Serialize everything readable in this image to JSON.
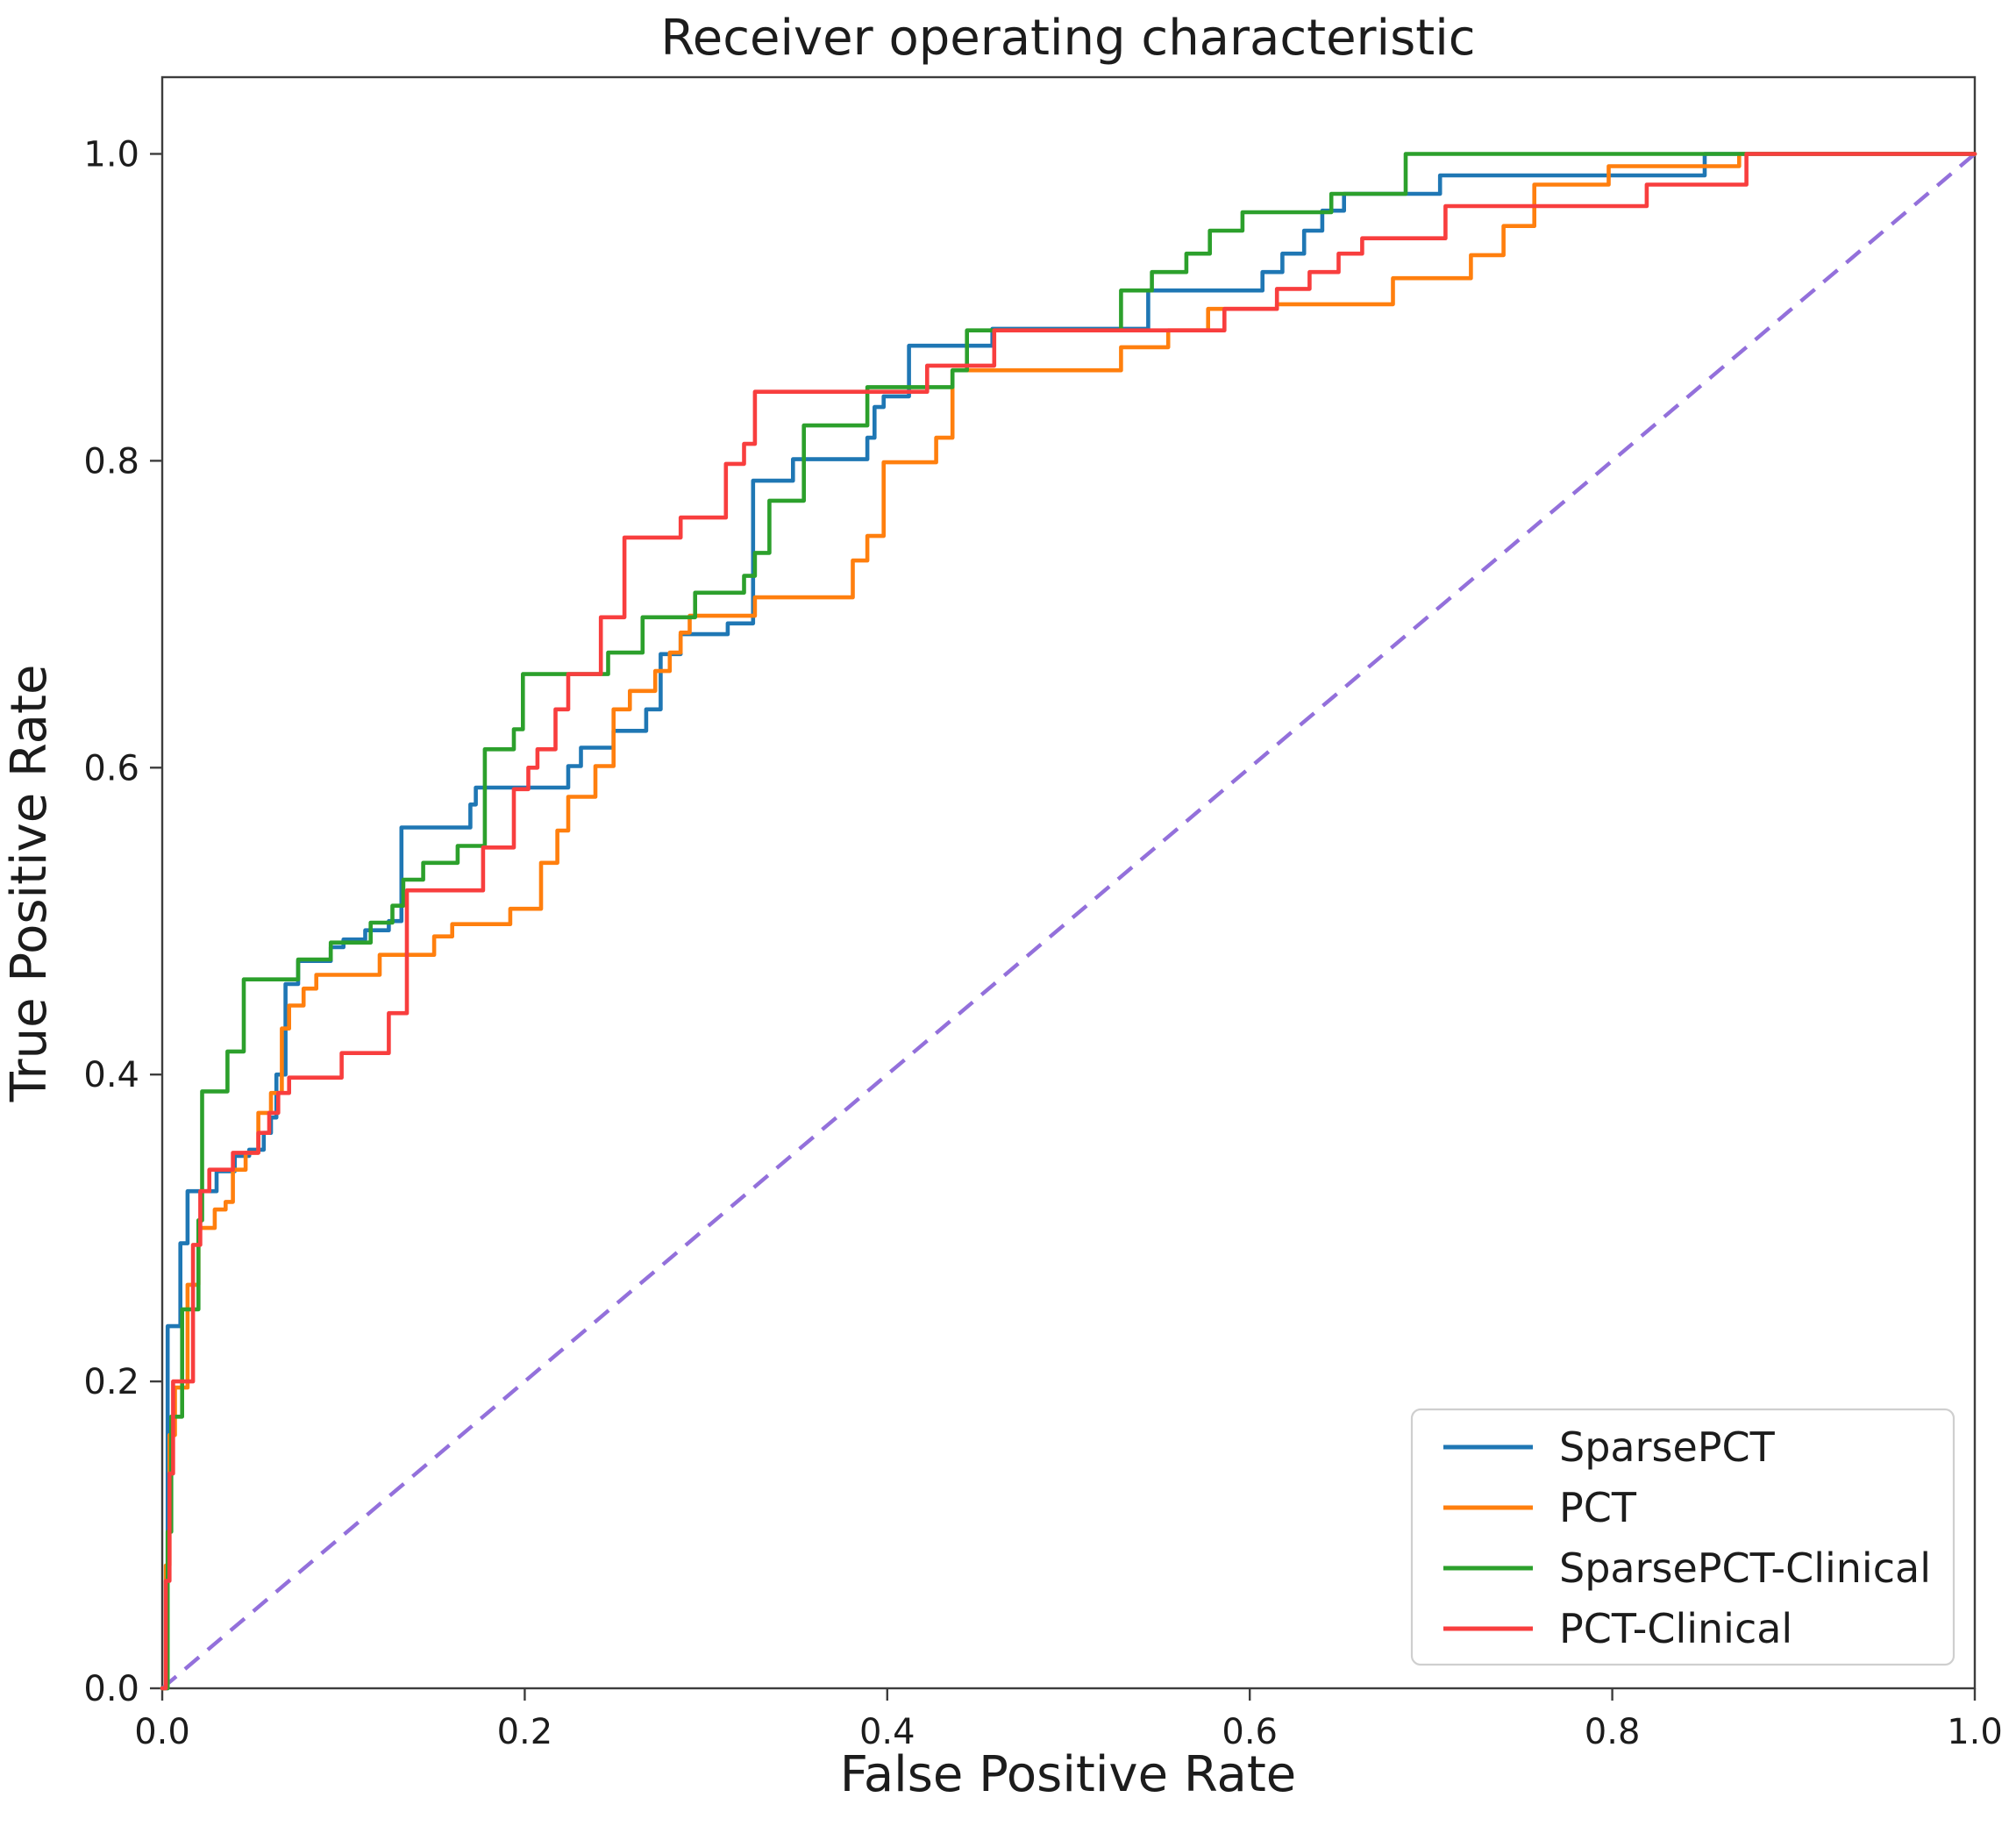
{
  "title": "Receiver operating characteristic",
  "chart_data": {
    "type": "line",
    "subtype": "roc_step_curves",
    "title": "Receiver operating characteristic",
    "xlabel": "False Positive Rate",
    "ylabel": "True Positive Rate",
    "xlim": [
      0.0,
      1.0
    ],
    "ylim": [
      0.0,
      1.05
    ],
    "grid": false,
    "x_tick_labels": [
      "0.0",
      "0.2",
      "0.4",
      "0.6",
      "0.8",
      "1.0"
    ],
    "x_tick_values": [
      0.0,
      0.2,
      0.4,
      0.6,
      0.8,
      1.0
    ],
    "y_tick_labels": [
      "0.0",
      "0.2",
      "0.4",
      "0.6",
      "0.8",
      "1.0"
    ],
    "y_tick_values": [
      0.0,
      0.2,
      0.4,
      0.6,
      0.8,
      1.0
    ],
    "legend": {
      "position": "lower right",
      "entries": [
        "SparsePCT",
        "PCT",
        "SparsePCT-Clinical",
        "PCT-Clinical"
      ]
    },
    "diagonal_reference_line": {
      "from": [
        0.0,
        0.0
      ],
      "to": [
        1.0,
        1.0
      ],
      "style": "dashed",
      "color": "#9370db"
    },
    "frame_color": "#3d3d3d",
    "series": [
      {
        "name": "SparsePCT",
        "color": "#1f77b4",
        "points": [
          [
            0,
            0
          ],
          [
            0.003,
            0.236
          ],
          [
            0.01,
            0.29
          ],
          [
            0.014,
            0.324
          ],
          [
            0.03,
            0.337
          ],
          [
            0.04,
            0.347
          ],
          [
            0.048,
            0.351
          ],
          [
            0.056,
            0.362
          ],
          [
            0.06,
            0.372
          ],
          [
            0.063,
            0.4
          ],
          [
            0.068,
            0.459
          ],
          [
            0.075,
            0.474
          ],
          [
            0.093,
            0.483
          ],
          [
            0.1,
            0.488
          ],
          [
            0.112,
            0.494
          ],
          [
            0.125,
            0.5
          ],
          [
            0.132,
            0.561
          ],
          [
            0.17,
            0.576
          ],
          [
            0.173,
            0.587
          ],
          [
            0.224,
            0.601
          ],
          [
            0.231,
            0.613
          ],
          [
            0.249,
            0.624
          ],
          [
            0.267,
            0.638
          ],
          [
            0.275,
            0.674
          ],
          [
            0.286,
            0.687
          ],
          [
            0.312,
            0.694
          ],
          [
            0.326,
            0.787
          ],
          [
            0.348,
            0.801
          ],
          [
            0.389,
            0.815
          ],
          [
            0.393,
            0.835
          ],
          [
            0.398,
            0.842
          ],
          [
            0.412,
            0.875
          ],
          [
            0.458,
            0.886
          ],
          [
            0.544,
            0.911
          ],
          [
            0.607,
            0.923
          ],
          [
            0.618,
            0.935
          ],
          [
            0.63,
            0.95
          ],
          [
            0.64,
            0.963
          ],
          [
            0.652,
            0.974
          ],
          [
            0.705,
            0.986
          ],
          [
            0.851,
            1.0
          ],
          [
            1.0,
            1.0
          ]
        ]
      },
      {
        "name": "PCT",
        "color": "#ff7f0e",
        "points": [
          [
            0,
            0
          ],
          [
            0.002,
            0.08
          ],
          [
            0.004,
            0.165
          ],
          [
            0.007,
            0.196
          ],
          [
            0.014,
            0.263
          ],
          [
            0.02,
            0.3
          ],
          [
            0.029,
            0.312
          ],
          [
            0.035,
            0.317
          ],
          [
            0.039,
            0.338
          ],
          [
            0.046,
            0.349
          ],
          [
            0.053,
            0.375
          ],
          [
            0.06,
            0.388
          ],
          [
            0.066,
            0.43
          ],
          [
            0.07,
            0.445
          ],
          [
            0.078,
            0.456
          ],
          [
            0.085,
            0.465
          ],
          [
            0.12,
            0.478
          ],
          [
            0.15,
            0.49
          ],
          [
            0.16,
            0.498
          ],
          [
            0.192,
            0.508
          ],
          [
            0.209,
            0.538
          ],
          [
            0.218,
            0.559
          ],
          [
            0.224,
            0.581
          ],
          [
            0.239,
            0.601
          ],
          [
            0.249,
            0.638
          ],
          [
            0.258,
            0.65
          ],
          [
            0.272,
            0.663
          ],
          [
            0.28,
            0.675
          ],
          [
            0.286,
            0.688
          ],
          [
            0.291,
            0.699
          ],
          [
            0.327,
            0.711
          ],
          [
            0.381,
            0.735
          ],
          [
            0.389,
            0.751
          ],
          [
            0.398,
            0.799
          ],
          [
            0.427,
            0.815
          ],
          [
            0.436,
            0.859
          ],
          [
            0.529,
            0.874
          ],
          [
            0.555,
            0.885
          ],
          [
            0.577,
            0.899
          ],
          [
            0.615,
            0.902
          ],
          [
            0.679,
            0.919
          ],
          [
            0.722,
            0.934
          ],
          [
            0.74,
            0.953
          ],
          [
            0.757,
            0.98
          ],
          [
            0.798,
            0.992
          ],
          [
            0.87,
            1.0
          ],
          [
            1.0,
            1.0
          ]
        ]
      },
      {
        "name": "SparsePCT-Clinical",
        "color": "#2ca02c",
        "points": [
          [
            0,
            0
          ],
          [
            0.003,
            0.102
          ],
          [
            0.005,
            0.177
          ],
          [
            0.011,
            0.247
          ],
          [
            0.02,
            0.305
          ],
          [
            0.022,
            0.389
          ],
          [
            0.036,
            0.415
          ],
          [
            0.045,
            0.462
          ],
          [
            0.075,
            0.475
          ],
          [
            0.093,
            0.486
          ],
          [
            0.115,
            0.499
          ],
          [
            0.127,
            0.51
          ],
          [
            0.133,
            0.527
          ],
          [
            0.144,
            0.538
          ],
          [
            0.163,
            0.549
          ],
          [
            0.178,
            0.612
          ],
          [
            0.194,
            0.625
          ],
          [
            0.199,
            0.661
          ],
          [
            0.246,
            0.675
          ],
          [
            0.265,
            0.698
          ],
          [
            0.294,
            0.714
          ],
          [
            0.321,
            0.725
          ],
          [
            0.327,
            0.74
          ],
          [
            0.335,
            0.774
          ],
          [
            0.354,
            0.823
          ],
          [
            0.389,
            0.848
          ],
          [
            0.436,
            0.859
          ],
          [
            0.444,
            0.885
          ],
          [
            0.529,
            0.911
          ],
          [
            0.546,
            0.923
          ],
          [
            0.565,
            0.935
          ],
          [
            0.578,
            0.95
          ],
          [
            0.596,
            0.962
          ],
          [
            0.645,
            0.974
          ],
          [
            0.686,
            1.0
          ],
          [
            1.0,
            1.0
          ]
        ]
      },
      {
        "name": "PCT-Clinical",
        "color": "#f83e3e",
        "points": [
          [
            0,
            0
          ],
          [
            0.002,
            0.07
          ],
          [
            0.004,
            0.14
          ],
          [
            0.006,
            0.2
          ],
          [
            0.017,
            0.289
          ],
          [
            0.021,
            0.324
          ],
          [
            0.026,
            0.338
          ],
          [
            0.039,
            0.349
          ],
          [
            0.053,
            0.362
          ],
          [
            0.059,
            0.375
          ],
          [
            0.064,
            0.388
          ],
          [
            0.07,
            0.398
          ],
          [
            0.099,
            0.414
          ],
          [
            0.125,
            0.44
          ],
          [
            0.135,
            0.52
          ],
          [
            0.177,
            0.548
          ],
          [
            0.194,
            0.586
          ],
          [
            0.202,
            0.6
          ],
          [
            0.207,
            0.612
          ],
          [
            0.217,
            0.638
          ],
          [
            0.224,
            0.661
          ],
          [
            0.242,
            0.698
          ],
          [
            0.255,
            0.75
          ],
          [
            0.286,
            0.763
          ],
          [
            0.311,
            0.798
          ],
          [
            0.321,
            0.811
          ],
          [
            0.327,
            0.845
          ],
          [
            0.422,
            0.862
          ],
          [
            0.459,
            0.885
          ],
          [
            0.586,
            0.899
          ],
          [
            0.615,
            0.912
          ],
          [
            0.633,
            0.923
          ],
          [
            0.649,
            0.935
          ],
          [
            0.662,
            0.945
          ],
          [
            0.708,
            0.966
          ],
          [
            0.819,
            0.98
          ],
          [
            0.874,
            1.0
          ],
          [
            1.0,
            1.0
          ]
        ]
      }
    ]
  }
}
